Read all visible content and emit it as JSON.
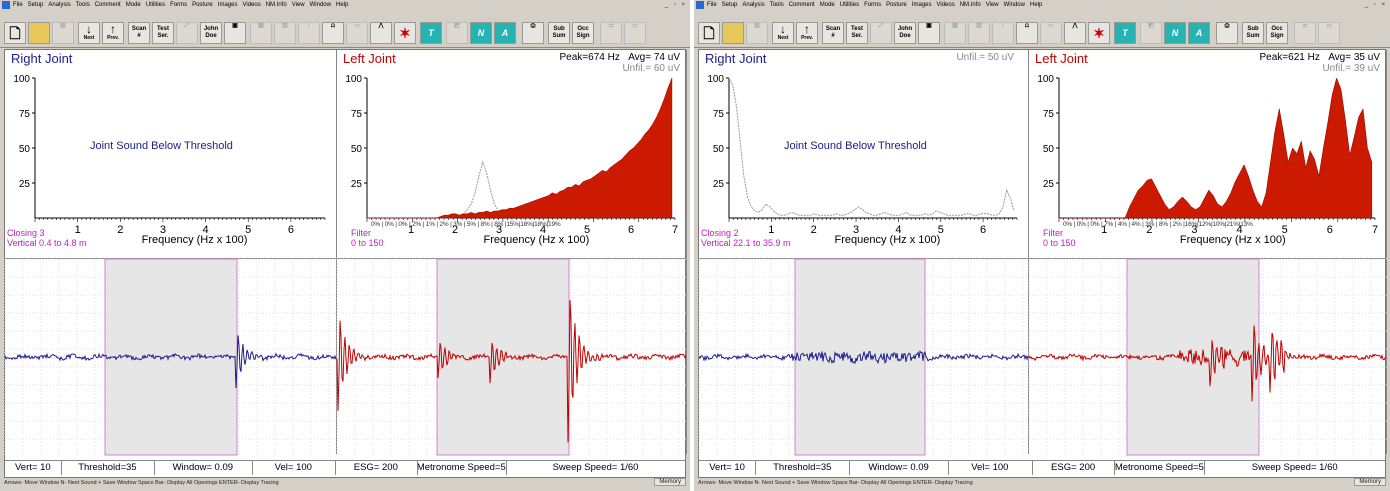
{
  "menu": [
    "File",
    "Setup",
    "Analysis",
    "Tools",
    "Comment",
    "Mode",
    "Utilities",
    "Forms",
    "Posture",
    "Images",
    "Videos",
    "NM.Info",
    "View",
    "Window",
    "Help"
  ],
  "window_controls": "_ ▫ ×",
  "toolbar": {
    "next": "Next",
    "prev": "Prev.",
    "scan": [
      "Scan",
      "#"
    ],
    "test": [
      "Test",
      "Ser."
    ],
    "patient": [
      "John",
      "Doe"
    ],
    "sub": [
      "Sub",
      "Sum"
    ],
    "occ": [
      "Occ",
      "Sign"
    ]
  },
  "screens": [
    {
      "right_title": "Right Joint",
      "right_unfil": "",
      "left_title": "Left Joint",
      "peak": "Peak=674  Hz",
      "avg": "Avg= 74 uV",
      "left_unfil": "Unfil.=  60 uV",
      "threshold_msg": "Joint Sound Below Threshold",
      "corner_right": [
        "Closing 3",
        "Vertical  0.4 to  4.8 m"
      ],
      "corner_left": [
        "Filter",
        "0 to 150"
      ],
      "percent_labels": "0% | 0% | 0% | 2% | 1% | 2% | 3% | 5% | 8% | 8% |15%|18%|18%|19%",
      "status": [
        "Vert= 10",
        "Threshold=35",
        "Window= 0.09",
        "Vel= 100",
        "ESG= 200",
        "Metronome Speed=5",
        "Sweep Speed= 1/60"
      ],
      "left_spectrum": [
        0,
        0,
        0,
        0,
        0,
        0,
        0,
        0,
        0,
        0,
        0,
        0,
        0,
        0,
        0,
        0,
        0,
        0,
        0,
        1,
        2,
        2,
        3,
        3,
        2,
        3,
        3,
        4,
        3,
        4,
        4,
        5,
        4,
        5,
        5,
        6,
        6,
        7,
        7,
        8,
        9,
        10,
        11,
        12,
        13,
        14,
        15,
        16,
        18,
        17,
        19,
        20,
        22,
        22,
        24,
        23,
        26,
        27,
        28,
        30,
        32,
        34,
        33,
        36,
        38,
        40,
        42,
        45,
        48,
        50,
        53,
        56,
        60,
        63,
        67,
        72,
        78,
        85,
        93,
        100
      ],
      "left_unfil_spectrum": [
        0,
        0,
        0,
        0,
        0,
        0,
        0,
        0,
        0,
        0,
        0,
        0,
        0,
        0,
        0,
        0,
        0,
        0,
        0,
        0,
        0,
        0,
        0,
        1,
        2,
        3,
        6,
        10,
        18,
        30,
        40,
        32,
        20,
        10,
        5,
        3,
        2,
        2,
        1,
        1,
        1,
        1,
        1,
        1,
        1,
        1,
        1,
        1,
        1,
        1,
        1,
        1,
        1,
        1,
        1,
        1,
        1,
        1,
        1,
        1,
        1,
        1,
        1,
        1,
        1,
        1,
        1,
        1,
        1,
        1,
        1,
        1,
        1,
        1,
        1,
        1,
        1,
        1,
        1,
        1
      ]
    },
    {
      "right_title": "Right Joint",
      "right_unfil": "Unfil.=  50 uV",
      "left_title": "Left Joint",
      "peak": "Peak=621  Hz",
      "avg": "Avg= 35 uV",
      "left_unfil": "Unfil.=  39 uV",
      "threshold_msg": "Joint Sound Below Threshold",
      "corner_right": [
        "Closing 2",
        "Vertical 22.1 to 35.9 m"
      ],
      "corner_left": [
        "Filter",
        "0 to 150"
      ],
      "percent_labels": "0% | 0% | 0% | 7% | 4% | 4% | 3% | 8% | 2% |16%|12%|10%|21%|13%",
      "status": [
        "Vert= 10",
        "Threshold=35",
        "Window= 0.09",
        "Vel= 100",
        "ESG= 200",
        "Metronome Speed=5",
        "Sweep Speed= 1/60"
      ],
      "right_unfil_spectrum": [
        100,
        95,
        80,
        55,
        30,
        15,
        8,
        5,
        4,
        6,
        10,
        8,
        5,
        3,
        2,
        2,
        3,
        4,
        3,
        2,
        2,
        2,
        2,
        3,
        2,
        2,
        2,
        2,
        2,
        3,
        2,
        2,
        3,
        4,
        6,
        8,
        6,
        4,
        3,
        2,
        2,
        3,
        4,
        3,
        2,
        2,
        2,
        3,
        4,
        2,
        2,
        2,
        2,
        3,
        2,
        3,
        5,
        4,
        3,
        2,
        2,
        2,
        2,
        2,
        3,
        3,
        2,
        2,
        3,
        3,
        3,
        2,
        2,
        3,
        8,
        20,
        14,
        5
      ],
      "left_spectrum": [
        0,
        0,
        0,
        0,
        0,
        0,
        0,
        0,
        0,
        0,
        0,
        0,
        0,
        0,
        0,
        0,
        8,
        14,
        20,
        23,
        27,
        28,
        22,
        16,
        10,
        6,
        8,
        12,
        15,
        12,
        8,
        6,
        8,
        14,
        20,
        16,
        10,
        8,
        12,
        18,
        26,
        32,
        38,
        30,
        20,
        12,
        8,
        18,
        40,
        62,
        78,
        60,
        40,
        50,
        46,
        55,
        36,
        48,
        42,
        30,
        50,
        68,
        88,
        100,
        92,
        70,
        45,
        58,
        72,
        78,
        50,
        40
      ]
    }
  ],
  "hint_text": "Arrows- Move Window  N- Next Sound  + Save Window  Space Bar- Display All Openings  ENTER- Display Tracing",
  "memory_label": "Memory",
  "y_ticks": [
    "100",
    "75",
    "50",
    "25"
  ],
  "x_ticks_right": [
    "1",
    "2",
    "3",
    "4",
    "5",
    "6"
  ],
  "x_ticks_left": [
    "1",
    "2",
    "3",
    "4",
    "5",
    "6",
    "7"
  ],
  "x_axis_title": "Frequency (Hz x 100)",
  "colors": {
    "right": "#1c1c8c",
    "left": "#c00000",
    "fill": "#cc1a00",
    "band": "#e6e6e6",
    "magenta": "#c020c0"
  }
}
